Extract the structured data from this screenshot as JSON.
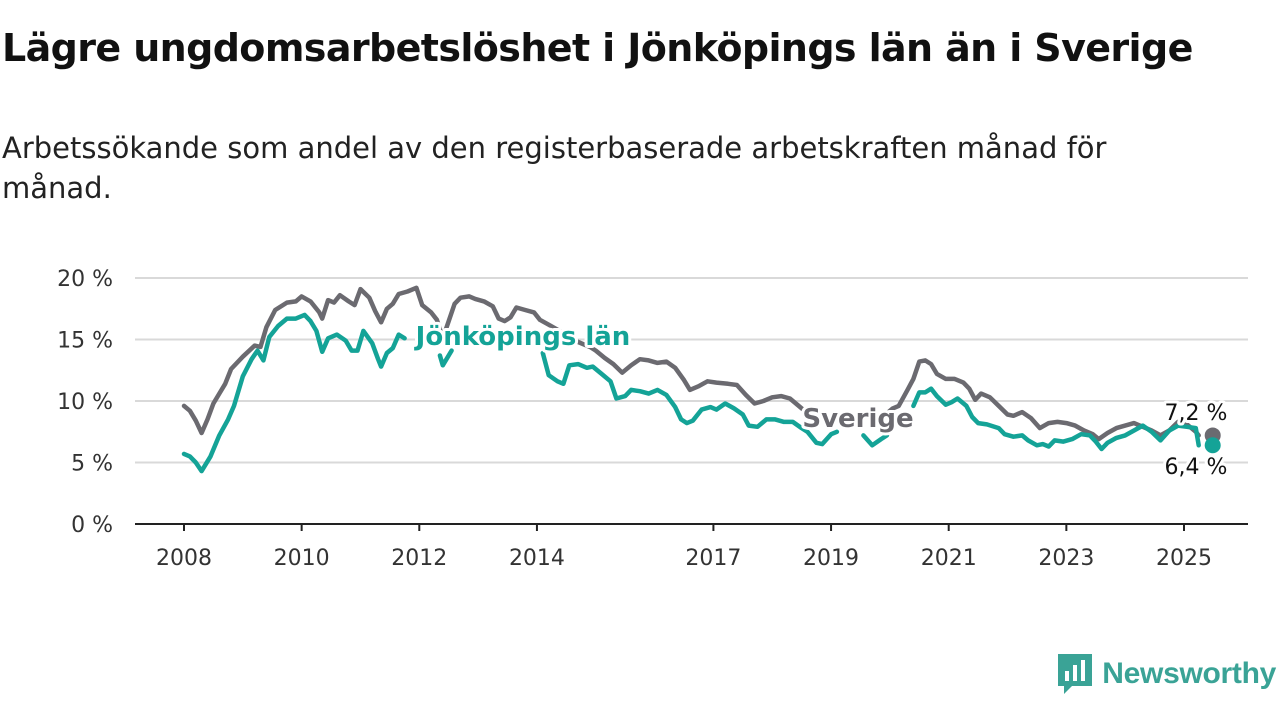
{
  "title": "Lägre ungdomsarbetslöshet i Jönköpings län än i Sverige",
  "subtitle": "Arbetssökande som andel av den registerbaserade arbetskraften månad för månad.",
  "brand": "Newsworthy",
  "colors": {
    "sverige": "#6b6a70",
    "jonkoping": "#14a397",
    "grid": "#d9d9d9",
    "axis": "#222222"
  },
  "chart_data": {
    "type": "line",
    "title": "Lägre ungdomsarbetslöshet i Jönköpings län än i Sverige",
    "subtitle": "Arbetssökande som andel av den registerbaserade arbetskraften månad för månad.",
    "xlabel": "",
    "ylabel": "",
    "ylim": [
      0,
      20
    ],
    "xlim": [
      2007.8,
      2026.1
    ],
    "y_ticks": [
      0,
      5,
      10,
      15,
      20
    ],
    "y_tick_labels": [
      "0 %",
      "5 %",
      "10 %",
      "15 %",
      "20 %"
    ],
    "x_ticks": [
      2008,
      2010,
      2012,
      2014,
      2017,
      2019,
      2021,
      2023,
      2025
    ],
    "x_tick_labels": [
      "2008",
      "2010",
      "2012",
      "2014",
      "2017",
      "2019",
      "2021",
      "2023",
      "2025"
    ],
    "grid": true,
    "series": [
      {
        "name": "Sverige",
        "color": "#6b6a70",
        "end_label": "7,2 %",
        "points": [
          [
            2008.0,
            9.6
          ],
          [
            2008.1,
            9.2
          ],
          [
            2008.2,
            8.4
          ],
          [
            2008.3,
            7.4
          ],
          [
            2008.4,
            8.5
          ],
          [
            2008.5,
            9.8
          ],
          [
            2008.6,
            10.6
          ],
          [
            2008.7,
            11.4
          ],
          [
            2008.8,
            12.6
          ],
          [
            2009.0,
            13.6
          ],
          [
            2009.2,
            14.5
          ],
          [
            2009.3,
            14.4
          ],
          [
            2009.4,
            16.0
          ],
          [
            2009.55,
            17.4
          ],
          [
            2009.75,
            18.0
          ],
          [
            2009.9,
            18.1
          ],
          [
            2010.0,
            18.5
          ],
          [
            2010.15,
            18.1
          ],
          [
            2010.3,
            17.2
          ],
          [
            2010.35,
            16.7
          ],
          [
            2010.45,
            18.2
          ],
          [
            2010.55,
            18.0
          ],
          [
            2010.65,
            18.6
          ],
          [
            2010.8,
            18.1
          ],
          [
            2010.9,
            17.8
          ],
          [
            2011.0,
            19.1
          ],
          [
            2011.15,
            18.4
          ],
          [
            2011.25,
            17.3
          ],
          [
            2011.35,
            16.4
          ],
          [
            2011.45,
            17.5
          ],
          [
            2011.55,
            17.9
          ],
          [
            2011.65,
            18.7
          ],
          [
            2011.8,
            18.9
          ],
          [
            2011.95,
            19.2
          ],
          [
            2012.05,
            17.8
          ],
          [
            2012.2,
            17.2
          ],
          [
            2012.3,
            16.6
          ],
          [
            2012.4,
            15.1
          ],
          [
            2012.5,
            16.5
          ],
          [
            2012.6,
            17.9
          ],
          [
            2012.7,
            18.4
          ],
          [
            2012.85,
            18.5
          ],
          [
            2012.95,
            18.3
          ],
          [
            2013.1,
            18.1
          ],
          [
            2013.25,
            17.7
          ],
          [
            2013.35,
            16.7
          ],
          [
            2013.45,
            16.5
          ],
          [
            2013.55,
            16.8
          ],
          [
            2013.65,
            17.6
          ],
          [
            2013.8,
            17.4
          ],
          [
            2013.95,
            17.2
          ],
          [
            2014.05,
            16.6
          ],
          [
            2014.2,
            16.2
          ],
          [
            2014.35,
            15.8
          ],
          [
            2014.5,
            15.3
          ],
          [
            2014.7,
            14.8
          ],
          [
            2014.9,
            14.4
          ],
          [
            2015.0,
            14.1
          ],
          [
            2015.15,
            13.5
          ],
          [
            2015.3,
            13.0
          ],
          [
            2015.45,
            12.3
          ],
          [
            2015.6,
            12.9
          ],
          [
            2015.75,
            13.4
          ],
          [
            2015.9,
            13.3
          ],
          [
            2016.05,
            13.1
          ],
          [
            2016.2,
            13.2
          ],
          [
            2016.35,
            12.7
          ],
          [
            2016.5,
            11.7
          ],
          [
            2016.6,
            10.9
          ],
          [
            2016.75,
            11.2
          ],
          [
            2016.9,
            11.6
          ],
          [
            2017.05,
            11.5
          ],
          [
            2017.25,
            11.4
          ],
          [
            2017.4,
            11.3
          ],
          [
            2017.55,
            10.5
          ],
          [
            2017.7,
            9.8
          ],
          [
            2017.85,
            10.0
          ],
          [
            2018.0,
            10.3
          ],
          [
            2018.15,
            10.4
          ],
          [
            2018.3,
            10.2
          ],
          [
            2018.45,
            9.6
          ],
          [
            2018.6,
            9.0
          ],
          [
            2018.75,
            8.3
          ]
        ]
      },
      {
        "name": "Sverige (forts.)",
        "color": "#6b6a70",
        "points": [
          [
            2019.95,
            9.0
          ],
          [
            2020.05,
            9.4
          ],
          [
            2020.15,
            9.6
          ],
          [
            2020.3,
            10.9
          ],
          [
            2020.4,
            11.8
          ],
          [
            2020.5,
            13.2
          ],
          [
            2020.6,
            13.3
          ],
          [
            2020.7,
            13.0
          ],
          [
            2020.8,
            12.2
          ],
          [
            2020.95,
            11.8
          ],
          [
            2021.1,
            11.8
          ],
          [
            2021.25,
            11.5
          ],
          [
            2021.35,
            11.0
          ],
          [
            2021.45,
            10.1
          ],
          [
            2021.55,
            10.6
          ],
          [
            2021.7,
            10.3
          ],
          [
            2021.85,
            9.6
          ],
          [
            2022.0,
            8.9
          ],
          [
            2022.1,
            8.8
          ],
          [
            2022.25,
            9.1
          ],
          [
            2022.4,
            8.6
          ],
          [
            2022.55,
            7.8
          ],
          [
            2022.7,
            8.2
          ],
          [
            2022.85,
            8.3
          ],
          [
            2023.0,
            8.2
          ],
          [
            2023.15,
            8.0
          ],
          [
            2023.3,
            7.6
          ],
          [
            2023.45,
            7.3
          ],
          [
            2023.55,
            6.9
          ],
          [
            2023.7,
            7.4
          ],
          [
            2023.85,
            7.8
          ],
          [
            2024.0,
            8.0
          ],
          [
            2024.15,
            8.2
          ],
          [
            2024.3,
            7.9
          ],
          [
            2024.45,
            7.6
          ],
          [
            2024.6,
            7.2
          ],
          [
            2024.75,
            7.6
          ],
          [
            2024.9,
            8.3
          ],
          [
            2025.05,
            8.1
          ],
          [
            2025.2,
            7.5
          ],
          [
            2025.25,
            7.2
          ]
        ]
      },
      {
        "name": "Jönköpings län",
        "color": "#14a397",
        "end_label": "6,4 %",
        "points": [
          [
            2008.0,
            5.7
          ],
          [
            2008.1,
            5.5
          ],
          [
            2008.2,
            5.0
          ],
          [
            2008.3,
            4.3
          ],
          [
            2008.45,
            5.5
          ],
          [
            2008.6,
            7.2
          ],
          [
            2008.75,
            8.5
          ],
          [
            2008.85,
            9.6
          ],
          [
            2009.0,
            12.0
          ],
          [
            2009.15,
            13.4
          ],
          [
            2009.25,
            14.1
          ],
          [
            2009.35,
            13.3
          ],
          [
            2009.45,
            15.2
          ],
          [
            2009.6,
            16.1
          ],
          [
            2009.75,
            16.7
          ],
          [
            2009.9,
            16.7
          ],
          [
            2010.05,
            17.0
          ],
          [
            2010.15,
            16.5
          ],
          [
            2010.25,
            15.7
          ],
          [
            2010.35,
            14.0
          ],
          [
            2010.45,
            15.1
          ],
          [
            2010.6,
            15.4
          ],
          [
            2010.75,
            14.9
          ],
          [
            2010.85,
            14.1
          ],
          [
            2010.95,
            14.1
          ],
          [
            2011.05,
            15.7
          ],
          [
            2011.2,
            14.7
          ],
          [
            2011.3,
            13.4
          ],
          [
            2011.35,
            12.8
          ],
          [
            2011.45,
            13.9
          ],
          [
            2011.55,
            14.3
          ],
          [
            2011.65,
            15.4
          ],
          [
            2011.75,
            15.1
          ]
        ]
      },
      {
        "name": "Jönköpings län (forts. 1)",
        "color": "#14a397",
        "points": [
          [
            2012.35,
            13.7
          ],
          [
            2012.4,
            12.9
          ],
          [
            2012.55,
            14.1
          ]
        ]
      },
      {
        "name": "Jönköpings län (forts. 2)",
        "color": "#14a397",
        "points": [
          [
            2014.1,
            13.9
          ],
          [
            2014.2,
            12.1
          ],
          [
            2014.35,
            11.6
          ],
          [
            2014.45,
            11.4
          ],
          [
            2014.55,
            12.9
          ],
          [
            2014.7,
            13.0
          ],
          [
            2014.85,
            12.7
          ],
          [
            2014.95,
            12.8
          ],
          [
            2015.1,
            12.2
          ],
          [
            2015.25,
            11.6
          ],
          [
            2015.35,
            10.2
          ],
          [
            2015.5,
            10.4
          ],
          [
            2015.6,
            10.9
          ],
          [
            2015.75,
            10.8
          ],
          [
            2015.9,
            10.6
          ],
          [
            2016.05,
            10.9
          ],
          [
            2016.2,
            10.5
          ],
          [
            2016.35,
            9.5
          ],
          [
            2016.45,
            8.5
          ],
          [
            2016.55,
            8.2
          ],
          [
            2016.65,
            8.4
          ],
          [
            2016.8,
            9.3
          ],
          [
            2016.95,
            9.5
          ],
          [
            2017.05,
            9.3
          ],
          [
            2017.2,
            9.8
          ],
          [
            2017.35,
            9.4
          ],
          [
            2017.5,
            8.9
          ],
          [
            2017.6,
            8.0
          ],
          [
            2017.75,
            7.9
          ],
          [
            2017.9,
            8.5
          ],
          [
            2018.05,
            8.5
          ],
          [
            2018.2,
            8.3
          ],
          [
            2018.35,
            8.3
          ],
          [
            2018.5,
            7.8
          ],
          [
            2018.6,
            7.5
          ],
          [
            2018.75,
            6.6
          ],
          [
            2018.85,
            6.5
          ],
          [
            2019.0,
            7.3
          ],
          [
            2019.1,
            7.5
          ]
        ]
      },
      {
        "name": "Jönköpings län (forts. 3)",
        "color": "#14a397",
        "points": [
          [
            2019.55,
            7.2
          ],
          [
            2019.7,
            6.4
          ],
          [
            2019.85,
            6.9
          ],
          [
            2019.95,
            7.2
          ]
        ]
      },
      {
        "name": "Jönköpings län (forts. 4)",
        "color": "#14a397",
        "points": [
          [
            2020.4,
            9.6
          ],
          [
            2020.5,
            10.7
          ],
          [
            2020.6,
            10.7
          ],
          [
            2020.7,
            11.0
          ],
          [
            2020.8,
            10.4
          ],
          [
            2020.95,
            9.7
          ],
          [
            2021.05,
            9.9
          ],
          [
            2021.15,
            10.2
          ],
          [
            2021.3,
            9.6
          ],
          [
            2021.4,
            8.7
          ],
          [
            2021.5,
            8.2
          ],
          [
            2021.65,
            8.1
          ],
          [
            2021.85,
            7.8
          ],
          [
            2021.95,
            7.3
          ],
          [
            2022.1,
            7.1
          ],
          [
            2022.25,
            7.2
          ],
          [
            2022.35,
            6.8
          ],
          [
            2022.5,
            6.4
          ],
          [
            2022.6,
            6.5
          ],
          [
            2022.7,
            6.3
          ],
          [
            2022.8,
            6.8
          ],
          [
            2022.95,
            6.7
          ],
          [
            2023.1,
            6.9
          ],
          [
            2023.25,
            7.3
          ],
          [
            2023.4,
            7.2
          ],
          [
            2023.5,
            6.7
          ],
          [
            2023.6,
            6.1
          ],
          [
            2023.7,
            6.6
          ],
          [
            2023.85,
            7.0
          ],
          [
            2024.0,
            7.2
          ],
          [
            2024.15,
            7.6
          ],
          [
            2024.3,
            8.0
          ],
          [
            2024.45,
            7.5
          ],
          [
            2024.6,
            6.8
          ],
          [
            2024.75,
            7.6
          ],
          [
            2024.9,
            8.0
          ],
          [
            2025.05,
            7.9
          ],
          [
            2025.2,
            7.8
          ],
          [
            2025.25,
            6.4
          ]
        ]
      }
    ],
    "annotations": [
      {
        "text": "Jönköpings län",
        "x": 2013.0,
        "y": 15.0,
        "color": "#14a397"
      },
      {
        "text": "Sverige",
        "x": 2019.5,
        "y": 8.6,
        "color": "#6b6a70"
      },
      {
        "text": "7,2 %",
        "x": 2025.25,
        "y": 7.2,
        "color": "#111111"
      },
      {
        "text": "6,4 %",
        "x": 2025.25,
        "y": 6.4,
        "color": "#111111"
      }
    ]
  }
}
